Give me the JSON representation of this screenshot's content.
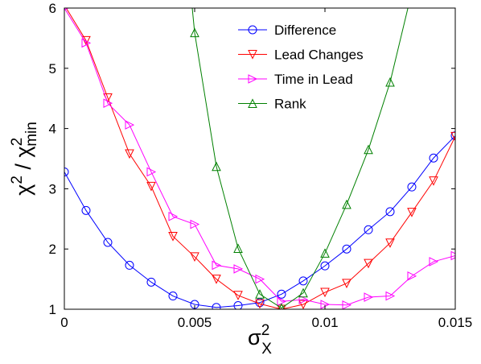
{
  "chart_data": {
    "type": "line",
    "xlabel": {
      "base": "σ",
      "sup": "2",
      "sub": "X"
    },
    "ylabel": {
      "num_base": "χ",
      "num_sup": "2",
      "sep": " / ",
      "den_base": "χ",
      "den_sup": "2",
      "den_sub": "min"
    },
    "xlim": [
      0,
      0.015
    ],
    "ylim": [
      1,
      6
    ],
    "xticks": [
      0,
      0.005,
      0.01,
      0.015
    ],
    "xtick_labels": [
      "0",
      "0.005",
      "0.01",
      "0.015"
    ],
    "yticks": [
      1,
      2,
      3,
      4,
      5,
      6
    ],
    "ytick_labels": [
      "1",
      "2",
      "3",
      "4",
      "5",
      "6"
    ],
    "grid": false,
    "legend_position": "top-right",
    "series": [
      {
        "name": "Difference",
        "color": "#0000ff",
        "marker": "circle",
        "x": [
          0,
          0.000833,
          0.001667,
          0.0025,
          0.003333,
          0.004167,
          0.005,
          0.005833,
          0.006667,
          0.0075,
          0.008333,
          0.009167,
          0.01,
          0.010833,
          0.011667,
          0.0125,
          0.013333,
          0.014167,
          0.015
        ],
        "y": [
          3.28,
          2.64,
          2.11,
          1.73,
          1.45,
          1.22,
          1.08,
          1.03,
          1.06,
          1.11,
          1.25,
          1.47,
          1.72,
          2.0,
          2.32,
          2.62,
          3.03,
          3.51,
          3.88
        ]
      },
      {
        "name": "Lead Changes",
        "color": "#ff0000",
        "marker": "triangle-down",
        "x": [
          0,
          0.000833,
          0.001667,
          0.0025,
          0.003333,
          0.004167,
          0.005,
          0.005833,
          0.006667,
          0.0075,
          0.008333,
          0.009167,
          0.01,
          0.010833,
          0.011667,
          0.0125,
          0.013333,
          0.014167,
          0.015
        ],
        "y": [
          6.05,
          5.46,
          4.51,
          3.58,
          3.04,
          2.21,
          1.87,
          1.5,
          1.23,
          1.09,
          1.0,
          1.08,
          1.28,
          1.43,
          1.76,
          2.1,
          2.61,
          3.13,
          3.87
        ]
      },
      {
        "name": "Time in Lead",
        "color": "#ff00ff",
        "marker": "triangle-right",
        "x": [
          0,
          0.000833,
          0.001667,
          0.0025,
          0.003333,
          0.004167,
          0.005,
          0.005833,
          0.006667,
          0.0075,
          0.008333,
          0.009167,
          0.01,
          0.010833,
          0.011667,
          0.0125,
          0.013333,
          0.014167,
          0.015
        ],
        "y": [
          6.0,
          5.42,
          4.42,
          4.06,
          3.28,
          2.54,
          2.41,
          1.73,
          1.67,
          1.5,
          1.13,
          1.16,
          1.08,
          1.07,
          1.2,
          1.22,
          1.55,
          1.79,
          1.89
        ]
      },
      {
        "name": "Rank",
        "color": "#008000",
        "marker": "triangle-up",
        "x": [
          0.005,
          0.005833,
          0.006667,
          0.0075,
          0.008333,
          0.009167,
          0.01,
          0.010833,
          0.011667,
          0.0125
        ],
        "y": [
          5.59,
          3.37,
          2.01,
          1.25,
          1.02,
          1.27,
          1.93,
          2.74,
          3.65,
          4.77
        ],
        "line_extensions": [
          {
            "x": [
              0.00484,
              0.005
            ],
            "y": [
              6.3,
              5.59
            ]
          },
          {
            "x": [
              0.0125,
              0.01335
            ],
            "y": [
              4.77,
              6.3
            ]
          }
        ]
      }
    ]
  }
}
